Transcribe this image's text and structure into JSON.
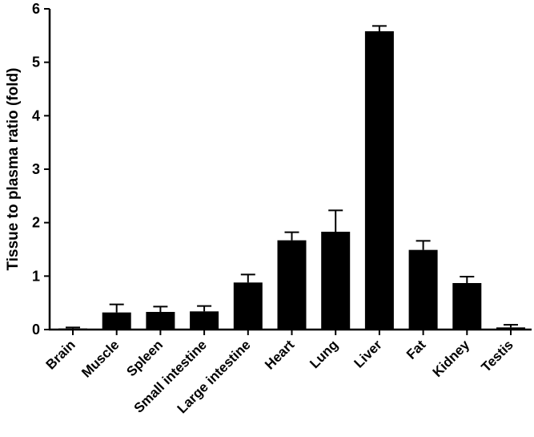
{
  "chart_data": {
    "type": "bar",
    "title": "",
    "xlabel": "",
    "ylabel": "Tissue to plasma ratio (fold)",
    "ylim": [
      0,
      6
    ],
    "yticks": [
      "0",
      "1",
      "2",
      "3",
      "4",
      "5",
      "6"
    ],
    "categories": [
      "Brain",
      "Muscle",
      "Spleen",
      "Small intestine",
      "Large intestine",
      "Heart",
      "Lung",
      "Liver",
      "Fat",
      "Kidney",
      "Testis"
    ],
    "values": [
      0.02,
      0.32,
      0.33,
      0.34,
      0.88,
      1.67,
      1.83,
      5.58,
      1.49,
      0.87,
      0.04
    ],
    "errors": [
      0.02,
      0.15,
      0.1,
      0.1,
      0.15,
      0.15,
      0.4,
      0.1,
      0.17,
      0.12,
      0.05
    ],
    "grid": false,
    "bar_color": "#000000"
  }
}
